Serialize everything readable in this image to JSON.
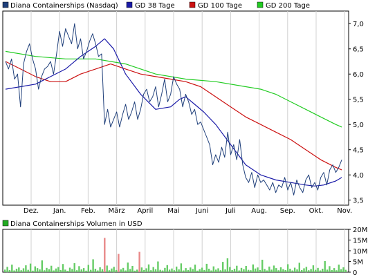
{
  "chart_data": [
    {
      "type": "line",
      "legend": [
        {
          "name": "Diana Containerships (Nasdaq)",
          "color": "#1f3f7a"
        },
        {
          "name": "GD 38 Tage",
          "color": "#1a1aa8"
        },
        {
          "name": "GD 100 Tage",
          "color": "#cc1111"
        },
        {
          "name": "GD 200 Tage",
          "color": "#22cc22"
        }
      ],
      "legend_position": "top",
      "x_categories": [
        "Dez.",
        "Jan.",
        "Feb.",
        "März",
        "April",
        "Mai",
        "Juni",
        "Juli",
        "Aug.",
        "Sep.",
        "Okt.",
        "Nov."
      ],
      "ylim": [
        3.4,
        7.25
      ],
      "yticks": [
        "3,5",
        "4,0",
        "4,5",
        "5,0",
        "5,5",
        "6,0",
        "6,5",
        "7,0"
      ],
      "grid": "vertical",
      "series": [
        {
          "name": "Diana Containerships (Nasdaq)",
          "color": "#1f3f7a",
          "x": [
            0,
            0.1,
            0.2,
            0.3,
            0.4,
            0.5,
            0.6,
            0.7,
            0.8,
            0.9,
            1.0,
            1.1,
            1.2,
            1.3,
            1.4,
            1.5,
            1.6,
            1.7,
            1.8,
            1.9,
            2.0,
            2.1,
            2.2,
            2.3,
            2.4,
            2.5,
            2.6,
            2.7,
            2.8,
            2.9,
            3.0,
            3.1,
            3.2,
            3.3,
            3.4,
            3.5,
            3.6,
            3.7,
            3.8,
            3.9,
            4.0,
            4.1,
            4.2,
            4.3,
            4.4,
            4.5,
            4.6,
            4.7,
            4.8,
            4.9,
            5.0,
            5.1,
            5.2,
            5.3,
            5.4,
            5.5,
            5.6,
            5.7,
            5.8,
            5.9,
            6.0,
            6.1,
            6.2,
            6.3,
            6.4,
            6.5,
            6.6,
            6.7,
            6.8,
            6.9,
            7.0,
            7.1,
            7.2,
            7.3,
            7.4,
            7.5,
            7.6,
            7.7,
            7.8,
            7.9,
            8.0,
            8.1,
            8.2,
            8.3,
            8.4,
            8.5,
            8.6,
            8.7,
            8.8,
            8.9,
            9.0,
            9.1,
            9.2,
            9.3,
            9.4,
            9.5,
            9.6,
            9.7,
            9.8,
            9.9,
            10.0,
            10.1,
            10.2,
            10.3,
            10.4,
            10.5,
            10.6,
            10.7,
            10.8,
            10.9,
            11.0,
            11.1,
            11.2
          ],
          "values": [
            6.25,
            6.1,
            6.3,
            5.9,
            6.0,
            5.35,
            6.2,
            6.45,
            6.6,
            6.3,
            6.1,
            5.7,
            5.95,
            6.1,
            6.15,
            6.25,
            6.0,
            6.4,
            6.85,
            6.55,
            6.9,
            6.75,
            6.6,
            7.0,
            6.5,
            6.7,
            6.3,
            6.45,
            6.65,
            6.8,
            6.6,
            6.35,
            6.4,
            5.0,
            5.3,
            4.95,
            5.1,
            5.25,
            4.95,
            5.2,
            5.4,
            5.1,
            5.25,
            5.45,
            5.1,
            5.3,
            5.6,
            5.7,
            5.45,
            5.55,
            5.75,
            5.35,
            5.6,
            5.9,
            5.45,
            5.6,
            5.95,
            5.8,
            5.7,
            5.35,
            5.6,
            5.45,
            5.2,
            5.3,
            5.0,
            5.05,
            4.9,
            4.75,
            4.6,
            4.2,
            4.4,
            4.25,
            4.55,
            4.35,
            4.85,
            4.4,
            4.6,
            4.3,
            4.7,
            4.2,
            3.95,
            3.85,
            4.05,
            3.75,
            4.0,
            3.85,
            3.9,
            3.8,
            3.7,
            3.85,
            3.65,
            3.8,
            3.75,
            3.95,
            3.7,
            3.85,
            3.6,
            3.9,
            3.75,
            3.65,
            3.9,
            4.0,
            3.75,
            3.85,
            3.7,
            3.95,
            4.05,
            3.8,
            4.1,
            4.2,
            4.05,
            4.15,
            4.3
          ]
        },
        {
          "name": "GD 38 Tage",
          "color": "#1a1aa8",
          "x": [
            0,
            0.5,
            1.0,
            1.5,
            2.0,
            2.5,
            3.0,
            3.3,
            3.6,
            4.0,
            4.5,
            5.0,
            5.5,
            5.8,
            6.0,
            6.3,
            6.6,
            7.0,
            7.5,
            8.0,
            8.5,
            9.0,
            9.5,
            10.0,
            10.3,
            10.6,
            11.0,
            11.2
          ],
          "values": [
            5.7,
            5.75,
            5.8,
            5.95,
            6.1,
            6.35,
            6.55,
            6.7,
            6.5,
            6.0,
            5.6,
            5.3,
            5.35,
            5.5,
            5.55,
            5.4,
            5.25,
            5.0,
            4.6,
            4.2,
            4.0,
            3.9,
            3.85,
            3.8,
            3.78,
            3.8,
            3.88,
            3.95
          ]
        },
        {
          "name": "GD 100 Tage",
          "color": "#cc1111",
          "x": [
            0,
            0.5,
            1.0,
            1.5,
            2.0,
            2.5,
            3.0,
            3.5,
            4.0,
            4.5,
            5.0,
            5.5,
            6.0,
            6.5,
            7.0,
            7.5,
            8.0,
            8.5,
            9.0,
            9.5,
            10.0,
            10.5,
            11.0,
            11.2
          ],
          "values": [
            6.25,
            6.1,
            5.95,
            5.85,
            5.85,
            6.0,
            6.1,
            6.2,
            6.1,
            6.0,
            5.95,
            5.9,
            5.85,
            5.75,
            5.55,
            5.35,
            5.15,
            5.0,
            4.85,
            4.7,
            4.5,
            4.3,
            4.15,
            4.1
          ]
        },
        {
          "name": "GD 200 Tage",
          "color": "#22cc22",
          "x": [
            0,
            1.0,
            2.0,
            3.0,
            4.0,
            5.0,
            6.0,
            7.0,
            8.0,
            8.5,
            9.0,
            9.5,
            10.0,
            10.5,
            11.0,
            11.2
          ],
          "values": [
            6.45,
            6.35,
            6.3,
            6.3,
            6.2,
            6.0,
            5.9,
            5.85,
            5.75,
            5.7,
            5.6,
            5.45,
            5.3,
            5.15,
            5.0,
            4.95
          ]
        }
      ]
    },
    {
      "type": "bar",
      "legend": [
        {
          "name": "Diana Containerships Volumen in USD",
          "color": "#22aa22"
        }
      ],
      "ylim": [
        0,
        20
      ],
      "yticks": [
        "0",
        "5M",
        "10M",
        "15M",
        "20M"
      ],
      "values": [
        1.2,
        2.5,
        1.0,
        3.5,
        0.8,
        1.6,
        2.2,
        0.9,
        1.8,
        3.2,
        1.1,
        4.0,
        0.7,
        2.7,
        1.9,
        1.3,
        5.5,
        0.9,
        2.0,
        1.4,
        3.0,
        0.8,
        1.7,
        2.4,
        1.0,
        3.8,
        1.2,
        0.6,
        2.1,
        1.5,
        4.2,
        0.9,
        2.8,
        1.3,
        1.9,
        0.7,
        3.4,
        1.1,
        6.0,
        1.6,
        0.8,
        2.3,
        1.4,
        16.0,
        3.1,
        0.9,
        1.7,
        2.5,
        1.0,
        8.5,
        1.3,
        2.0,
        0.8,
        4.5,
        1.5,
        2.9,
        0.7,
        1.2,
        9.5,
        2.2,
        1.0,
        1.8,
        3.6,
        0.9,
        2.4,
        1.4,
        5.0,
        1.1,
        0.8,
        2.0,
        3.3,
        1.2,
        1.7,
        0.9,
        2.6,
        1.3,
        4.1,
        0.8,
        1.9,
        1.0,
        2.2,
        1.5,
        3.5,
        0.7,
        1.4,
        2.1,
        1.0,
        3.9,
        1.6,
        0.8,
        2.7,
        1.2,
        1.8,
        0.9,
        4.8,
        1.3,
        6.5,
        2.4,
        1.0,
        1.6,
        3.0,
        0.8,
        2.0,
        1.4,
        2.9,
        1.1,
        0.9,
        3.6,
        1.7,
        2.2,
        1.0,
        5.8,
        1.5,
        0.8,
        2.6,
        1.2,
        3.1,
        1.9,
        0.9,
        2.3,
        1.4,
        1.0,
        3.7,
        1.6,
        0.8,
        2.1,
        1.3,
        4.4,
        1.0,
        1.8,
        2.5,
        0.9,
        1.5,
        3.2,
        1.1,
        2.0,
        0.8,
        1.6,
        5.2,
        1.2,
        2.8,
        1.0,
        1.9,
        0.9,
        3.5,
        1.4,
        2.3,
        1.1
      ]
    }
  ]
}
